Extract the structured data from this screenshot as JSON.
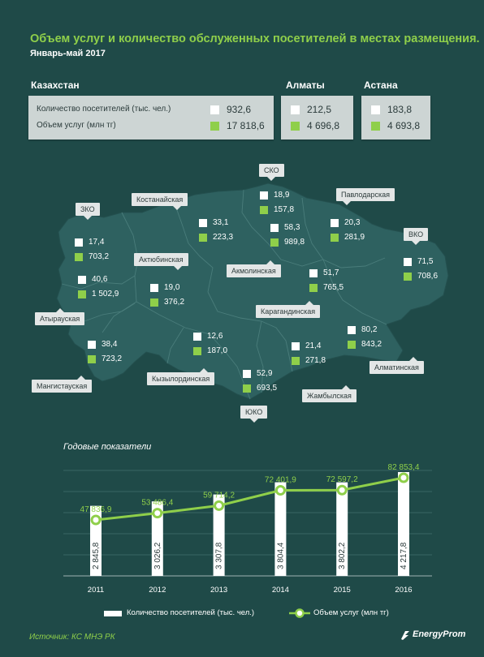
{
  "header": {
    "title": "Объем услуг и количество обслуженных посетителей в местах размещения.",
    "period": "Январь-май  2017"
  },
  "summary": {
    "kz_name": "Казахстан",
    "label_visitors": "Количество посетителей (тыс. чел.)",
    "label_services": "Объем услуг (млн тг)",
    "kz_visitors": "932,6",
    "kz_services": "17 818,6",
    "almaty_name": "Алматы",
    "almaty_visitors": "212,5",
    "almaty_services": "4 696,8",
    "astana_name": "Астана",
    "astana_visitors": "183,8",
    "astana_services": "4 693,8"
  },
  "regions": [
    {
      "name": "СКО",
      "visitors": "18,9",
      "services": "157,8"
    },
    {
      "name": "Костанайская",
      "visitors": "33,1",
      "services": "223,3"
    },
    {
      "name": "Павлодарская",
      "visitors": "20,3",
      "services": "281,9"
    },
    {
      "name": "ЗКО",
      "visitors": "17,4",
      "services": "703,2"
    },
    {
      "name": "Акмолинская",
      "visitors": "58,3",
      "services": "989,8"
    },
    {
      "name": "ВКО",
      "visitors": "71,5",
      "services": "708,6"
    },
    {
      "name": "Атырауская",
      "visitors": "40,6",
      "services": "1 502,9"
    },
    {
      "name": "Актюбинская",
      "visitors": "19,0",
      "services": "376,2"
    },
    {
      "name": "Карагандинская",
      "visitors": "51,7",
      "services": "765,5"
    },
    {
      "name": "Мангистауская",
      "visitors": "38,4",
      "services": "723,2"
    },
    {
      "name": "Кызылординская",
      "visitors": "12,6",
      "services": "187,0"
    },
    {
      "name": "Жамбылская",
      "visitors": "21,4",
      "services": "271,8"
    },
    {
      "name": "Алматинская",
      "visitors": "80,2",
      "services": "843,2"
    },
    {
      "name": "ЮКО",
      "visitors": "52,9",
      "services": "693,5"
    }
  ],
  "chart_heading": "Годовые показатели",
  "chart_data": {
    "type": "bar",
    "categories": [
      "2011",
      "2012",
      "2013",
      "2014",
      "2015",
      "2016"
    ],
    "series": [
      {
        "name": "Количество посетителей (тыс. чел.)",
        "type": "bar",
        "values": [
          2845.8,
          3026.2,
          3307.8,
          3804.4,
          3802.2,
          4217.8
        ],
        "labels": [
          "2 845,8",
          "3 026,2",
          "3 307,8",
          "3 804,4",
          "3 802,2",
          "4 217,8"
        ]
      },
      {
        "name": "Объем услуг (млн тг)",
        "type": "line",
        "values": [
          47836.9,
          53486.4,
          59714.2,
          72401.9,
          72597.2,
          82853.4
        ],
        "labels": [
          "47 836,9",
          "53 486,4",
          "59 714,2",
          "72 401,9",
          "72 597,2",
          "82 853,4"
        ]
      }
    ],
    "grid": true,
    "legend": "bottom"
  },
  "footer": {
    "source": "Источник: КС МНЭ РК",
    "brand": "EnergyProm"
  },
  "colors": {
    "background": "#1f4a48",
    "map": "#2e6160",
    "accent_green": "#8fcf4a",
    "white": "#ffffff"
  }
}
